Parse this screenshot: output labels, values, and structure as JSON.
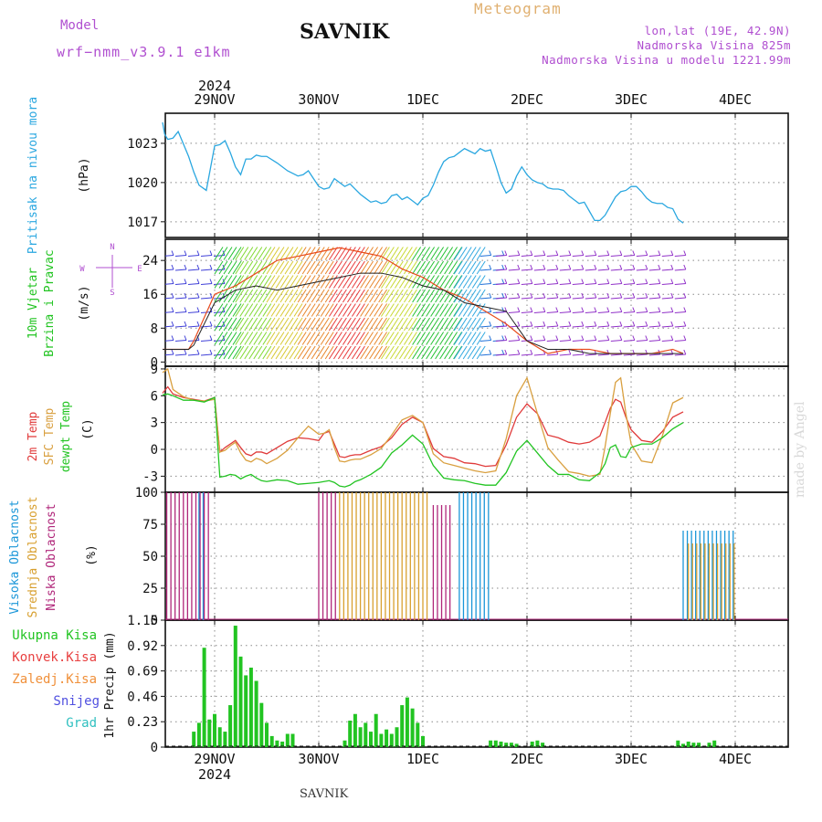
{
  "header": {
    "model_label": "Model",
    "model_version": "wrf−nmm_v3.9.1  e1km",
    "station": "SAVNIK",
    "product": "Meteogram",
    "lonlat": "lon,lat (19E, 42.9N)",
    "elevation": "Nadmorska Visina 825m",
    "model_elevation": "Nadmorska Visina u modelu 1221.99m"
  },
  "footer": {
    "station": "SAVNIK",
    "watermark": "made by Angel"
  },
  "time_axis": {
    "year": "2024",
    "labels": [
      "29NOV",
      "30NOV",
      "1DEC",
      "2DEC",
      "3DEC",
      "4DEC"
    ]
  },
  "colors": {
    "pressure": "#2aa7e0",
    "temp2m": "#e03a3a",
    "sfc": "#d9a040",
    "dewpt": "#22c422",
    "cloud_high": "#1a96d8",
    "cloud_mid": "#d8a030",
    "cloud_low": "#b0267a",
    "precip_total": "#22c422",
    "precip_conv": "#e84040",
    "precip_grid": "#f0903a",
    "precip_snow": "#5050e0",
    "precip_graupel": "#30c0c0",
    "wind_dir_axis": "#b04fd0"
  },
  "chart_data": [
    {
      "type": "line",
      "panel": "pressure",
      "ylabel_rotated": "Pritisak na nivou mora",
      "unit": "(hPa)",
      "yticks": [
        1017,
        1020,
        1023
      ],
      "ylim": [
        1015.8,
        1025.3
      ],
      "x": [
        0.0,
        0.02,
        0.05,
        0.1,
        0.15,
        0.25,
        0.3,
        0.35,
        0.42,
        0.5,
        0.55,
        0.6,
        0.65,
        0.7,
        0.75,
        0.8,
        0.85,
        0.9,
        0.95,
        1.0,
        1.1,
        1.2,
        1.25,
        1.3,
        1.35,
        1.4,
        1.45,
        1.5,
        1.55,
        1.6,
        1.65,
        1.7,
        1.75,
        1.8,
        1.85,
        1.9,
        1.95,
        2.0,
        2.05,
        2.1,
        2.15,
        2.2,
        2.25,
        2.3,
        2.35,
        2.4,
        2.45,
        2.5,
        2.55,
        2.6,
        2.65,
        2.7,
        2.75,
        2.8,
        2.85,
        2.9,
        2.95,
        3.0,
        3.05,
        3.1,
        3.15,
        3.2,
        3.25,
        3.3,
        3.35,
        3.4,
        3.45,
        3.5,
        3.55,
        3.6,
        3.65,
        3.7,
        3.75,
        3.8,
        3.85,
        3.9,
        3.95,
        4.0,
        4.05,
        4.1,
        4.15,
        4.2,
        4.25,
        4.3,
        4.35,
        4.4,
        4.45,
        4.5,
        4.55,
        4.6,
        4.65,
        4.7,
        4.75,
        4.8,
        4.85,
        4.9,
        4.95,
        5.0
      ],
      "series": [
        {
          "values": [
            1024.6,
            1023.7,
            1023.3,
            1023.4,
            1023.9,
            1022.0,
            1020.8,
            1019.8,
            1019.4,
            1022.8,
            1022.9,
            1023.2,
            1022.3,
            1021.2,
            1020.6,
            1021.8,
            1021.8,
            1022.1,
            1022.0,
            1022.0,
            1021.5,
            1020.9,
            1020.7,
            1020.5,
            1020.6,
            1020.9,
            1020.3,
            1019.7,
            1019.5,
            1019.6,
            1020.3,
            1020.0,
            1019.7,
            1019.9,
            1019.5,
            1019.1,
            1018.8,
            1018.5,
            1018.6,
            1018.4,
            1018.5,
            1019.0,
            1019.1,
            1018.7,
            1018.9,
            1018.6,
            1018.3,
            1018.8,
            1019.0,
            1019.8,
            1020.8,
            1021.6,
            1021.9,
            1022.0,
            1022.3,
            1022.6,
            1022.4,
            1022.2,
            1022.6,
            1022.4,
            1022.5,
            1021.3,
            1020.0,
            1019.2,
            1019.5,
            1020.5,
            1021.2,
            1020.6,
            1020.2,
            1020.0,
            1019.9,
            1019.6,
            1019.5,
            1019.5,
            1019.4,
            1019.0,
            1018.7,
            1018.4,
            1018.5,
            1017.8,
            1017.1,
            1017.1,
            1017.5,
            1018.2,
            1018.9,
            1019.3,
            1019.4,
            1019.7,
            1019.7,
            1019.3,
            1018.8,
            1018.5,
            1018.4,
            1018.4,
            1018.1,
            1018.0,
            1017.2,
            1016.9
          ]
        }
      ]
    },
    {
      "type": "heatmap",
      "panel": "wind",
      "ylabel_rotated": "10m Vjetar",
      "ylabel_rotated_2": "Brzina i Pravac",
      "unit": "(m/s)",
      "yticks": [
        0,
        8,
        16,
        24
      ],
      "ylim": [
        -1,
        29
      ],
      "compass": {
        "n": "N",
        "s": "S",
        "e": "E",
        "w": "W"
      },
      "wind_speed": {
        "x": [
          0.0,
          0.25,
          0.3,
          0.5,
          0.7,
          0.9,
          1.1,
          1.3,
          1.5,
          1.7,
          1.9,
          2.1,
          2.3,
          2.5,
          2.7,
          2.9,
          3.1,
          3.3,
          3.5,
          3.7,
          3.9,
          4.1,
          4.3,
          4.5,
          4.7,
          4.9,
          5.0
        ],
        "values": [
          3,
          3,
          4,
          14,
          17,
          18,
          17,
          18,
          19,
          20,
          21,
          21,
          20,
          18,
          17,
          14,
          13,
          12,
          5,
          3,
          3,
          2,
          2,
          2,
          2,
          2,
          2
        ]
      },
      "wind_gust": {
        "x": [
          0.0,
          0.25,
          0.3,
          0.5,
          0.7,
          0.9,
          1.1,
          1.3,
          1.5,
          1.7,
          1.9,
          2.1,
          2.3,
          2.5,
          2.7,
          2.9,
          3.1,
          3.3,
          3.5,
          3.7,
          3.9,
          4.1,
          4.3,
          4.5,
          4.7,
          4.9,
          5.0
        ],
        "values": [
          3,
          3,
          5,
          16,
          18,
          21,
          24,
          25,
          26,
          27,
          26,
          25,
          22,
          20,
          17,
          15,
          12,
          9,
          5,
          2,
          3,
          3,
          2,
          2,
          2,
          3,
          2
        ]
      },
      "column_colors": [
        {
          "x": [
            0.0,
            0.5
          ],
          "color": "#4040d8"
        },
        {
          "x": [
            0.5,
            0.7
          ],
          "color": "#22c030"
        },
        {
          "x": [
            0.7,
            1.0
          ],
          "color": "#80d830"
        },
        {
          "x": [
            1.0,
            1.3
          ],
          "color": "#d8c830"
        },
        {
          "x": [
            1.3,
            1.6
          ],
          "color": "#e8862a"
        },
        {
          "x": [
            1.6,
            1.9
          ],
          "color": "#e83a3a"
        },
        {
          "x": [
            1.9,
            2.1
          ],
          "color": "#e8862a"
        },
        {
          "x": [
            2.1,
            2.4
          ],
          "color": "#c8d830"
        },
        {
          "x": [
            2.4,
            2.8
          ],
          "color": "#22c030"
        },
        {
          "x": [
            2.8,
            3.05
          ],
          "color": "#30a8e0"
        },
        {
          "x": [
            3.05,
            3.2
          ],
          "color": "#2070d8"
        },
        {
          "x": [
            3.2,
            5.0
          ],
          "color": "#9030c8"
        }
      ]
    },
    {
      "type": "line",
      "panel": "temperature",
      "ylabels_rotated": [
        "2m Temp",
        "SFC Temp",
        "dewpt Temp"
      ],
      "unit": "(C)",
      "yticks": [
        -3,
        0,
        3,
        6,
        9
      ],
      "ylim": [
        -4.8,
        9.3
      ],
      "x": [
        0.0,
        0.05,
        0.1,
        0.2,
        0.3,
        0.4,
        0.5,
        0.55,
        0.6,
        0.65,
        0.7,
        0.75,
        0.8,
        0.85,
        0.9,
        0.95,
        1.0,
        1.1,
        1.2,
        1.3,
        1.4,
        1.5,
        1.55,
        1.6,
        1.65,
        1.7,
        1.75,
        1.8,
        1.85,
        1.9,
        2.0,
        2.1,
        2.2,
        2.3,
        2.4,
        2.5,
        2.6,
        2.7,
        2.8,
        2.9,
        3.0,
        3.1,
        3.2,
        3.3,
        3.4,
        3.5,
        3.6,
        3.7,
        3.8,
        3.9,
        4.0,
        4.1,
        4.2,
        4.25,
        4.3,
        4.35,
        4.4,
        4.45,
        4.5,
        4.6,
        4.7,
        4.8,
        4.9,
        5.0
      ],
      "series": [
        {
          "name": "2m Temp",
          "color": "#e03a3a",
          "values": [
            6.3,
            7.0,
            6.2,
            5.8,
            5.6,
            5.4,
            5.8,
            -0.3,
            0.2,
            0.6,
            1.0,
            0.2,
            -0.5,
            -0.7,
            -0.3,
            -0.3,
            -0.5,
            0.2,
            0.9,
            1.3,
            1.2,
            1.0,
            1.8,
            2.0,
            0.6,
            -0.8,
            -0.9,
            -0.7,
            -0.6,
            -0.6,
            -0.1,
            0.3,
            1.3,
            2.8,
            3.6,
            3.0,
            0.1,
            -0.8,
            -1.0,
            -1.5,
            -1.6,
            -1.9,
            -1.8,
            0.5,
            3.6,
            5.1,
            4.0,
            1.6,
            1.3,
            0.8,
            0.6,
            0.8,
            1.5,
            3.0,
            4.6,
            5.6,
            5.3,
            3.6,
            2.2,
            1.0,
            0.8,
            2.0,
            3.6,
            4.2
          ]
        },
        {
          "name": "SFC Temp",
          "color": "#d9a040",
          "values": [
            8.6,
            9.0,
            6.7,
            5.9,
            5.5,
            5.4,
            5.6,
            -0.3,
            -0.1,
            0.4,
            0.8,
            -0.4,
            -1.2,
            -1.4,
            -1.0,
            -1.2,
            -1.6,
            -1.0,
            -0.1,
            1.3,
            2.6,
            1.7,
            1.8,
            2.2,
            0.2,
            -1.3,
            -1.4,
            -1.2,
            -1.1,
            -1.1,
            -0.6,
            0.1,
            1.6,
            3.3,
            3.8,
            3.0,
            -0.5,
            -1.5,
            -1.8,
            -2.1,
            -2.4,
            -2.6,
            -2.4,
            1.2,
            6.0,
            8.0,
            4.0,
            0.2,
            -1.2,
            -2.5,
            -2.7,
            -3.0,
            -2.8,
            0.3,
            4.0,
            7.5,
            8.0,
            4.0,
            0.6,
            -1.3,
            -1.5,
            1.5,
            5.2,
            5.8
          ]
        },
        {
          "name": "dewpt Temp",
          "color": "#22c422",
          "values": [
            6.1,
            6.2,
            6.0,
            5.5,
            5.5,
            5.3,
            5.8,
            -3.1,
            -3.0,
            -2.8,
            -2.9,
            -3.3,
            -3.0,
            -2.8,
            -3.2,
            -3.5,
            -3.6,
            -3.4,
            -3.5,
            -3.9,
            -3.8,
            -3.7,
            -3.6,
            -3.5,
            -3.7,
            -4.1,
            -4.2,
            -4.0,
            -3.6,
            -3.4,
            -2.8,
            -2.0,
            -0.4,
            0.5,
            1.6,
            0.6,
            -1.8,
            -3.2,
            -3.4,
            -3.5,
            -3.8,
            -4.0,
            -4.0,
            -2.6,
            -0.2,
            1.0,
            -0.4,
            -1.8,
            -2.8,
            -2.8,
            -3.4,
            -3.5,
            -2.6,
            -1.6,
            0.2,
            0.5,
            -0.8,
            -0.9,
            0.2,
            0.6,
            0.6,
            1.3,
            2.3,
            3.0
          ]
        }
      ]
    },
    {
      "type": "bar",
      "panel": "clouds",
      "ylabels_rotated": [
        "Visoka Oblacnost",
        "Srednja Oblacnost",
        "Niska Oblacnost"
      ],
      "unit": "(%)",
      "yticks": [
        0,
        25,
        50,
        75,
        100
      ],
      "ylim": [
        0,
        100
      ],
      "bands": [
        {
          "name": "Visoka Oblacnost",
          "color": "#1a96d8",
          "segments": [
            [
              0.35,
              0.42,
              100
            ],
            [
              2.85,
              3.15,
              100
            ],
            [
              5.0,
              5.5,
              70
            ]
          ]
        },
        {
          "name": "Srednja Oblacnost",
          "color": "#d8a030",
          "segments": [
            [
              1.7,
              2.55,
              100
            ],
            [
              5.05,
              5.5,
              60
            ]
          ]
        },
        {
          "name": "Niska Oblacnost",
          "color": "#b0267a",
          "segments": [
            [
              0.0,
              0.45,
              100
            ],
            [
              1.5,
              1.7,
              100
            ],
            [
              2.6,
              2.8,
              90
            ]
          ]
        }
      ]
    },
    {
      "type": "bar",
      "panel": "precipitation",
      "legend": [
        "Ukupna Kisa",
        "Konvek.Kisa",
        "Zaledj.Kisa",
        "Snijeg",
        "Grad"
      ],
      "unit": "1hr Precip (mm)",
      "yticks": [
        0,
        0.23,
        0.46,
        0.69,
        0.92,
        1.15
      ],
      "ylim": [
        0,
        1.15
      ],
      "x": [
        0.3,
        0.35,
        0.4,
        0.45,
        0.5,
        0.55,
        0.6,
        0.65,
        0.7,
        0.75,
        0.8,
        0.85,
        0.9,
        0.95,
        1.0,
        1.05,
        1.1,
        1.15,
        1.2,
        1.25,
        1.75,
        1.8,
        1.85,
        1.9,
        1.95,
        2.0,
        2.05,
        2.1,
        2.15,
        2.2,
        2.25,
        2.3,
        2.35,
        2.4,
        2.45,
        2.5,
        3.15,
        3.2,
        3.25,
        3.3,
        3.35,
        3.4,
        3.55,
        3.6,
        3.65,
        4.95,
        5.0,
        5.05,
        5.1,
        5.15,
        5.25,
        5.3
      ],
      "values": [
        0.14,
        0.22,
        0.9,
        0.25,
        0.3,
        0.18,
        0.14,
        0.38,
        1.1,
        0.82,
        0.65,
        0.72,
        0.6,
        0.4,
        0.22,
        0.1,
        0.06,
        0.05,
        0.12,
        0.12,
        0.06,
        0.24,
        0.3,
        0.18,
        0.22,
        0.14,
        0.3,
        0.12,
        0.16,
        0.12,
        0.18,
        0.38,
        0.45,
        0.35,
        0.22,
        0.1,
        0.06,
        0.06,
        0.05,
        0.04,
        0.04,
        0.03,
        0.05,
        0.06,
        0.04,
        0.06,
        0.03,
        0.05,
        0.04,
        0.04,
        0.04,
        0.06
      ]
    }
  ]
}
